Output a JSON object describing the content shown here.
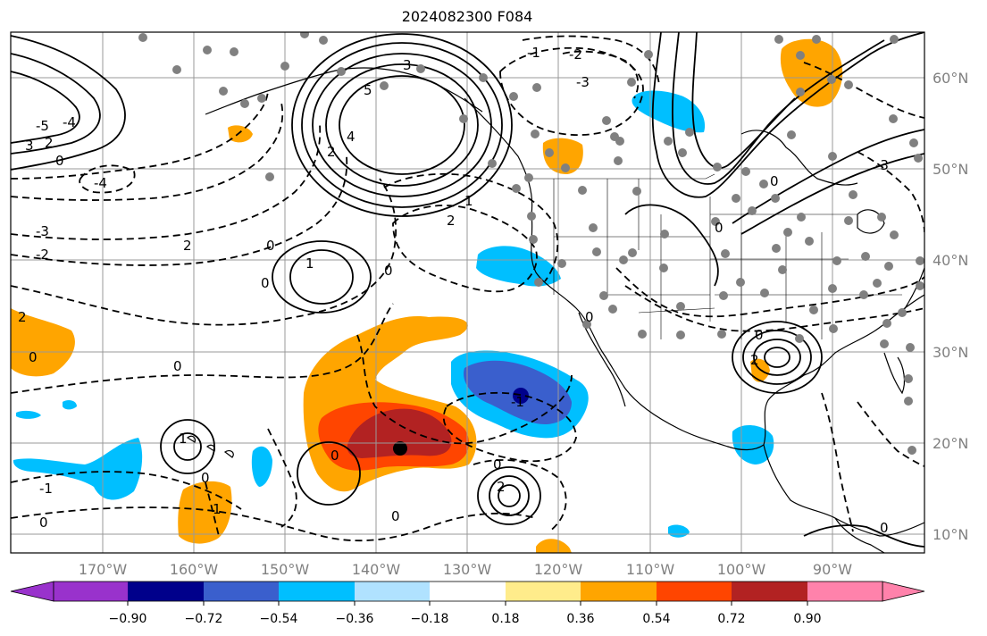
{
  "title": "2024082300 F084",
  "lat_labels": [
    "60°N",
    "50°N",
    "40°N",
    "30°N",
    "20°N",
    "10°N"
  ],
  "lon_labels": [
    "170°W",
    "160°W",
    "150°W",
    "140°W",
    "130°W",
    "120°W",
    "110°W",
    "100°W",
    "90°W"
  ],
  "colorbar": {
    "ticks": [
      "−0.90",
      "−0.72",
      "−0.54",
      "−0.36",
      "−0.18",
      "0.18",
      "0.36",
      "0.54",
      "0.72",
      "0.90"
    ],
    "colors": [
      "#9932cc",
      "#00008b",
      "#3a5fcd",
      "#00bfff",
      "#b0e2ff",
      "#ffffff",
      "#ffec8b",
      "#ffa500",
      "#ff4500",
      "#b22222",
      "#ff82ab"
    ]
  },
  "contour_labels": [
    "3",
    "5",
    "4",
    "2",
    "1",
    "0",
    "-1",
    "-2",
    "-3",
    "-4",
    "-5"
  ],
  "colors": {
    "land_border": "#000000",
    "grid": "#999999",
    "station_dot": "#808080"
  }
}
